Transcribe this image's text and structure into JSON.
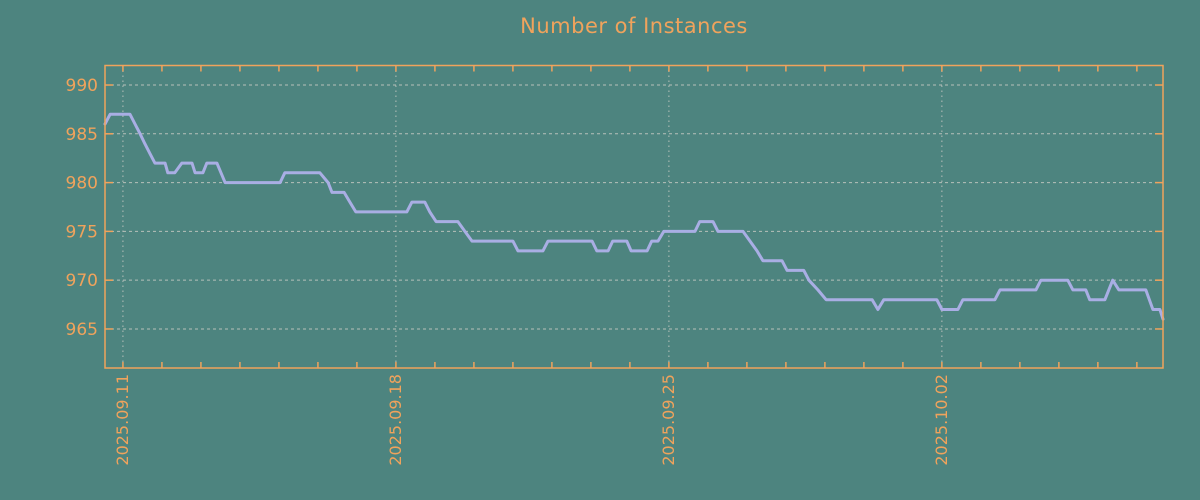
{
  "title": "Number of Instances",
  "colors": {
    "background": "#4d847f",
    "axis": "#f0a35c",
    "grid": "#b6c0ba",
    "line": "#a9aee4"
  },
  "chart_data": {
    "type": "line",
    "title": "Number of Instances",
    "xlabel": "",
    "ylabel": "",
    "legend": "none",
    "grid": "dotted",
    "x_axis": {
      "unit": "days since 2025.09.11",
      "range_days": [
        -0.46,
        26.67
      ],
      "minor_tick_interval_days": 1,
      "grid_labels": [
        {
          "day": 0,
          "label": "2025.09.11"
        },
        {
          "day": 7,
          "label": "2025.09.18"
        },
        {
          "day": 14,
          "label": "2025.09.25"
        },
        {
          "day": 21,
          "label": "2025.10.02"
        }
      ]
    },
    "y_axis": {
      "range": [
        961,
        992
      ],
      "ticks": [
        990,
        985,
        980,
        975,
        970,
        965
      ]
    },
    "series": [
      {
        "name": "instances",
        "color": "#a9aee4",
        "points_day_value": [
          [
            -0.46,
            986
          ],
          [
            -0.33,
            987
          ],
          [
            0.18,
            987
          ],
          [
            0.31,
            986
          ],
          [
            0.44,
            985
          ],
          [
            0.56,
            984
          ],
          [
            0.69,
            983
          ],
          [
            0.82,
            982
          ],
          [
            1.08,
            982
          ],
          [
            1.15,
            981
          ],
          [
            1.33,
            981
          ],
          [
            1.51,
            982
          ],
          [
            1.77,
            982
          ],
          [
            1.85,
            981
          ],
          [
            2.05,
            981
          ],
          [
            2.15,
            982
          ],
          [
            2.41,
            982
          ],
          [
            2.62,
            980
          ],
          [
            4.03,
            980
          ],
          [
            4.15,
            981
          ],
          [
            5.05,
            981
          ],
          [
            5.26,
            980
          ],
          [
            5.36,
            979
          ],
          [
            5.67,
            979
          ],
          [
            5.82,
            978
          ],
          [
            5.97,
            977
          ],
          [
            7.28,
            977
          ],
          [
            7.41,
            978
          ],
          [
            7.74,
            978
          ],
          [
            7.87,
            977
          ],
          [
            8.03,
            976
          ],
          [
            8.59,
            976
          ],
          [
            8.77,
            975
          ],
          [
            8.95,
            974
          ],
          [
            10.0,
            974
          ],
          [
            10.13,
            973
          ],
          [
            10.77,
            973
          ],
          [
            10.9,
            974
          ],
          [
            12.03,
            974
          ],
          [
            12.15,
            973
          ],
          [
            12.44,
            973
          ],
          [
            12.56,
            974
          ],
          [
            12.92,
            974
          ],
          [
            13.03,
            973
          ],
          [
            13.44,
            973
          ],
          [
            13.56,
            974
          ],
          [
            13.72,
            974
          ],
          [
            13.87,
            975
          ],
          [
            14.67,
            975
          ],
          [
            14.79,
            976
          ],
          [
            15.13,
            976
          ],
          [
            15.26,
            975
          ],
          [
            15.9,
            975
          ],
          [
            16.08,
            974
          ],
          [
            16.26,
            973
          ],
          [
            16.41,
            972
          ],
          [
            16.9,
            972
          ],
          [
            17.03,
            971
          ],
          [
            17.46,
            971
          ],
          [
            17.59,
            970
          ],
          [
            17.82,
            969
          ],
          [
            18.03,
            968
          ],
          [
            19.21,
            968
          ],
          [
            19.36,
            967
          ],
          [
            19.51,
            968
          ],
          [
            20.87,
            968
          ],
          [
            21.0,
            967
          ],
          [
            21.41,
            967
          ],
          [
            21.54,
            968
          ],
          [
            22.36,
            968
          ],
          [
            22.49,
            969
          ],
          [
            23.41,
            969
          ],
          [
            23.54,
            970
          ],
          [
            24.23,
            970
          ],
          [
            24.36,
            969
          ],
          [
            24.69,
            969
          ],
          [
            24.79,
            968
          ],
          [
            25.18,
            968
          ],
          [
            25.38,
            970
          ],
          [
            25.54,
            969
          ],
          [
            26.23,
            969
          ],
          [
            26.41,
            967
          ],
          [
            26.59,
            967
          ],
          [
            26.67,
            966
          ]
        ]
      }
    ]
  }
}
